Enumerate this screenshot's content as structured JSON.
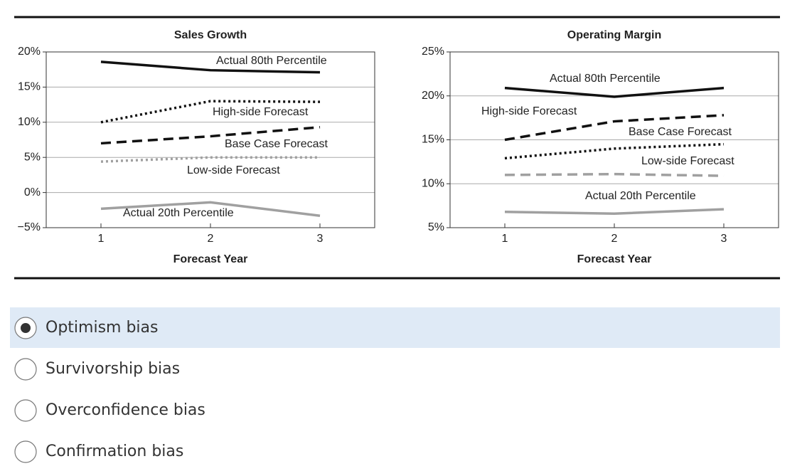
{
  "chart_data": [
    {
      "type": "line",
      "title": "Sales Growth",
      "x_label": "Forecast Year",
      "x": [
        1,
        2,
        3
      ],
      "xlim": [
        0.5,
        3.5
      ],
      "xticks": [
        1,
        2,
        3
      ],
      "ylim": [
        -5,
        20
      ],
      "yticks": [
        {
          "value": -5,
          "label": "−5%"
        },
        {
          "value": 0,
          "label": "0%"
        },
        {
          "value": 5,
          "label": "5%"
        },
        {
          "value": 10,
          "label": "10%"
        },
        {
          "value": 15,
          "label": "15%"
        },
        {
          "value": 20,
          "label": "20%"
        }
      ],
      "grid": true,
      "series": [
        {
          "name": "Actual 80th Percentile",
          "color": "#111111",
          "dash": "solid",
          "values": [
            18.6,
            17.4,
            17.1
          ]
        },
        {
          "name": "High-side Forecast",
          "color": "#111111",
          "dash": "dotted",
          "values": [
            10,
            13,
            12.9
          ]
        },
        {
          "name": "Base Case Forecast",
          "color": "#111111",
          "dash": "dashed",
          "values": [
            7,
            8,
            9.3
          ]
        },
        {
          "name": "Low-side Forecast",
          "color": "#a0a0a0",
          "dash": "dotted",
          "values": [
            4.4,
            5,
            5
          ]
        },
        {
          "name": "Actual 20th Percentile",
          "color": "#a0a0a0",
          "dash": "solid",
          "values": [
            -2.3,
            -1.4,
            -3.3
          ]
        }
      ]
    },
    {
      "type": "line",
      "title": "Operating Margin",
      "x_label": "Forecast Year",
      "x": [
        1,
        2,
        3
      ],
      "xlim": [
        0.5,
        3.5
      ],
      "xticks": [
        1,
        2,
        3
      ],
      "ylim": [
        5,
        25
      ],
      "yticks": [
        {
          "value": 5,
          "label": "5%"
        },
        {
          "value": 10,
          "label": "10%"
        },
        {
          "value": 15,
          "label": "15%"
        },
        {
          "value": 20,
          "label": "20%"
        },
        {
          "value": 25,
          "label": "25%"
        }
      ],
      "grid": true,
      "series": [
        {
          "name": "Actual 80th Percentile",
          "color": "#111111",
          "dash": "solid",
          "values": [
            20.9,
            19.9,
            20.9
          ]
        },
        {
          "name": "High-side Forecast",
          "color": "#111111",
          "dash": "dashed",
          "values": [
            15,
            17.1,
            17.8
          ]
        },
        {
          "name": "Base Case Forecast",
          "color": "#111111",
          "dash": "dotted",
          "values": [
            12.9,
            14,
            14.5
          ]
        },
        {
          "name": "Low-side Forecast",
          "color": "#a0a0a0",
          "dash": "dashed",
          "values": [
            11,
            11.1,
            10.9
          ]
        },
        {
          "name": "Actual 20th Percentile",
          "color": "#a0a0a0",
          "dash": "solid",
          "values": [
            6.8,
            6.6,
            7.1
          ]
        }
      ]
    }
  ],
  "options": [
    "Optimism bias",
    "Survivorship bias",
    "Overconfidence bias",
    "Confirmation bias"
  ],
  "selected": 0
}
